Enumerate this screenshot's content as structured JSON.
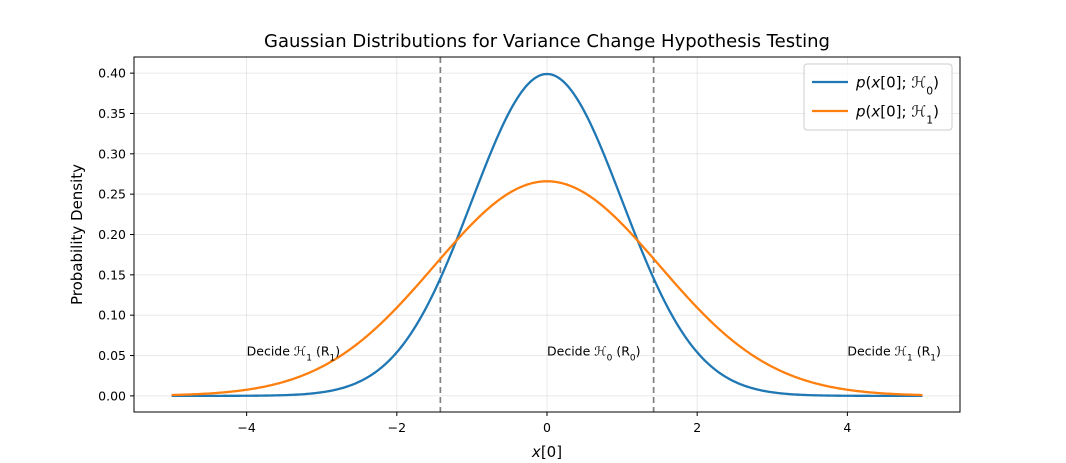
{
  "chart_data": {
    "type": "line",
    "title": "Gaussian Distributions for Variance Change Hypothesis Testing",
    "xlabel": "x[0]",
    "ylabel": "Probability Density",
    "xlim": [
      -5.5,
      5.5
    ],
    "ylim": [
      -0.02,
      0.42
    ],
    "x_ticks": [
      -4,
      -2,
      0,
      2,
      4
    ],
    "x_tick_labels": [
      "−4",
      "−2",
      "0",
      "2",
      "4"
    ],
    "y_ticks": [
      0.0,
      0.05,
      0.1,
      0.15,
      0.2,
      0.25,
      0.3,
      0.35,
      0.4
    ],
    "y_tick_labels": [
      "0.00",
      "0.05",
      "0.10",
      "0.15",
      "0.20",
      "0.25",
      "0.30",
      "0.35",
      "0.40"
    ],
    "grid": true,
    "legend_position": "top-right",
    "series": [
      {
        "name": "p(x[0]; ℋ0)",
        "color": "#1f77b4",
        "distribution": "normal",
        "mean": 0,
        "variance": 1,
        "x_range": [
          -5,
          5
        ]
      },
      {
        "name": "p(x[0]; ℋ1)",
        "color": "#ff7f0e",
        "distribution": "normal",
        "mean": 0,
        "variance": 2.25,
        "x_range": [
          -5,
          5
        ]
      }
    ],
    "thresholds": [
      -1.42,
      1.42
    ],
    "threshold_color": "#808080",
    "annotations": [
      {
        "text": "Decide ℋ1 (R1)",
        "x": -4,
        "y": 0.05
      },
      {
        "text": "Decide ℋ0 (R0)",
        "x": 0,
        "y": 0.05
      },
      {
        "text": "Decide ℋ1 (R1)",
        "x": 4,
        "y": 0.05
      }
    ]
  }
}
